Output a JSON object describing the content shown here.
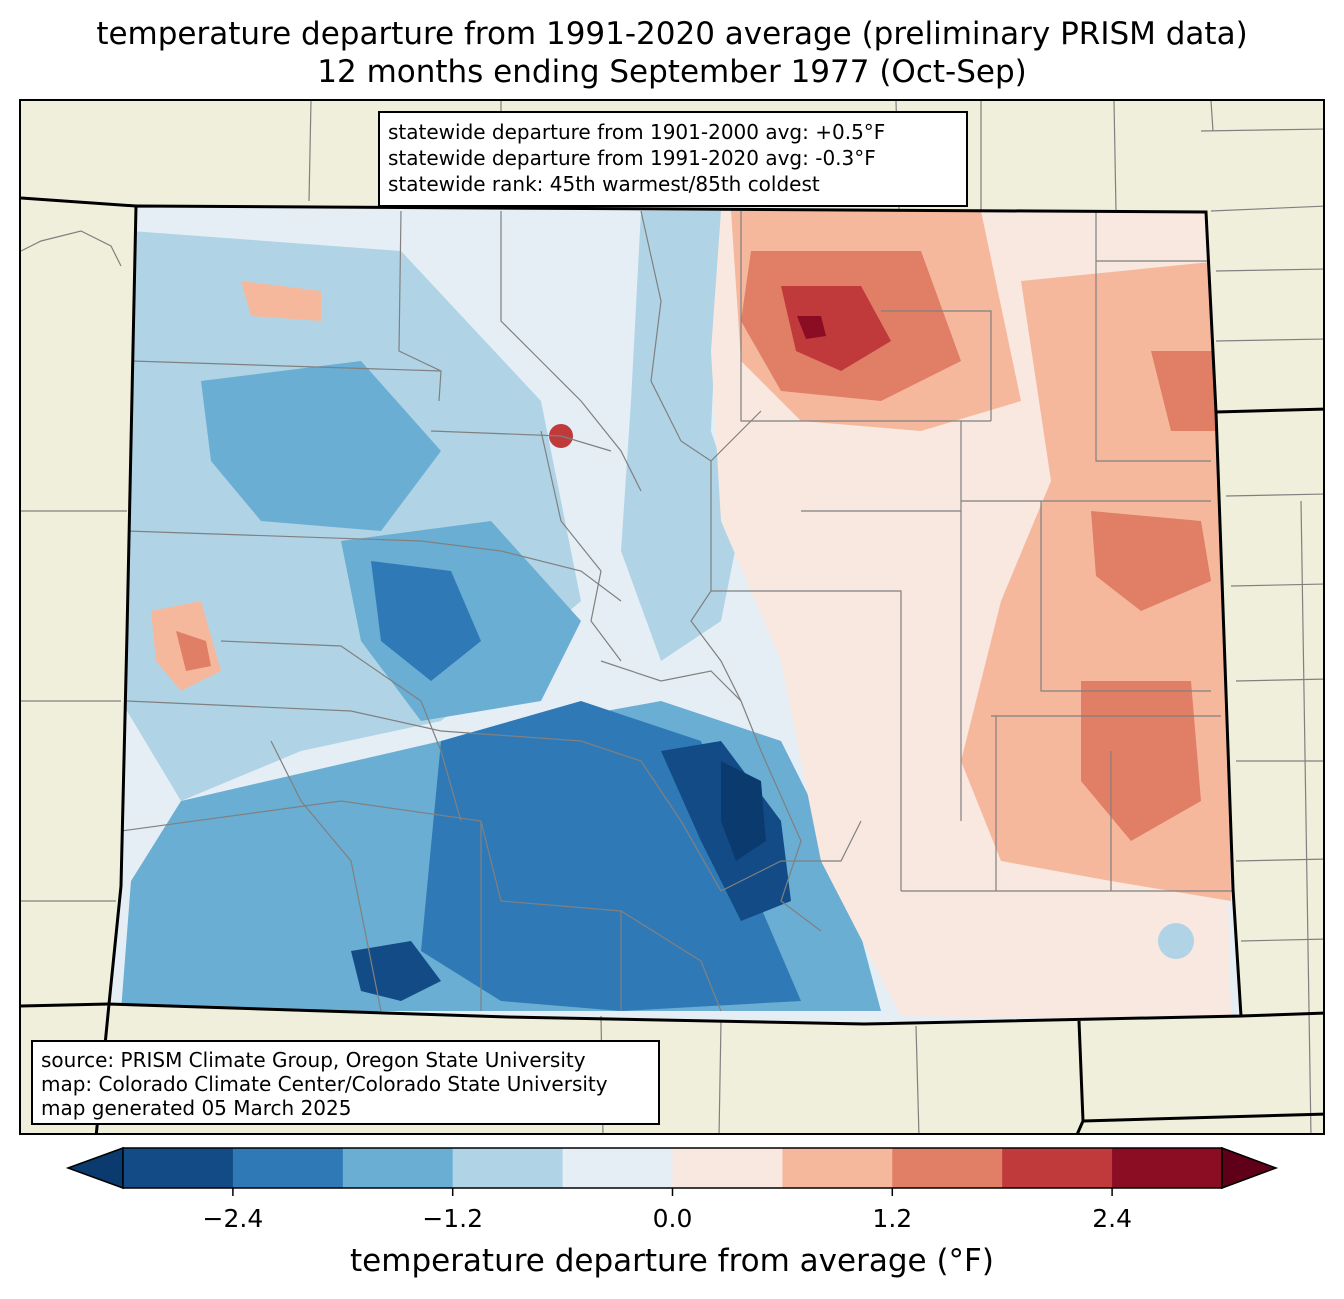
{
  "title_line1": "temperature departure from 1991-2020 average (preliminary PRISM data)",
  "title_line2": "12 months ending September 1977 (Oct-Sep)",
  "stats": {
    "line1": "statewide departure from 1901-2000 avg: +0.5°F",
    "line2": "statewide departure from 1991-2020 avg: -0.3°F",
    "line3": "statewide rank: 45th warmest/85th coldest"
  },
  "source": {
    "line1": "source: PRISM Climate Group, Oregon State University",
    "line2": "map: Colorado Climate Center/Colorado State University",
    "line3": "map generated 05 March 2025"
  },
  "colorbar": {
    "label": "temperature departure from average (°F)",
    "ticks": [
      "−2.4",
      "−1.2",
      "0.0",
      "1.2",
      "2.4"
    ],
    "tick_values": [
      -2.4,
      -1.2,
      0.0,
      1.2,
      2.4
    ],
    "range": [
      -3.0,
      3.0
    ],
    "bin_width": 0.6,
    "colors": [
      "#0b3b6e",
      "#134b86",
      "#2f7ab6",
      "#6aaed3",
      "#b0d4e6",
      "#e5eef5",
      "#f9e8e0",
      "#f6b89d",
      "#e07e66",
      "#c0393b",
      "#8a0d24",
      "#5f0018"
    ]
  },
  "map_colors": {
    "land": "#efefdc",
    "state_border": "#000000",
    "county_border": "#808080"
  }
}
